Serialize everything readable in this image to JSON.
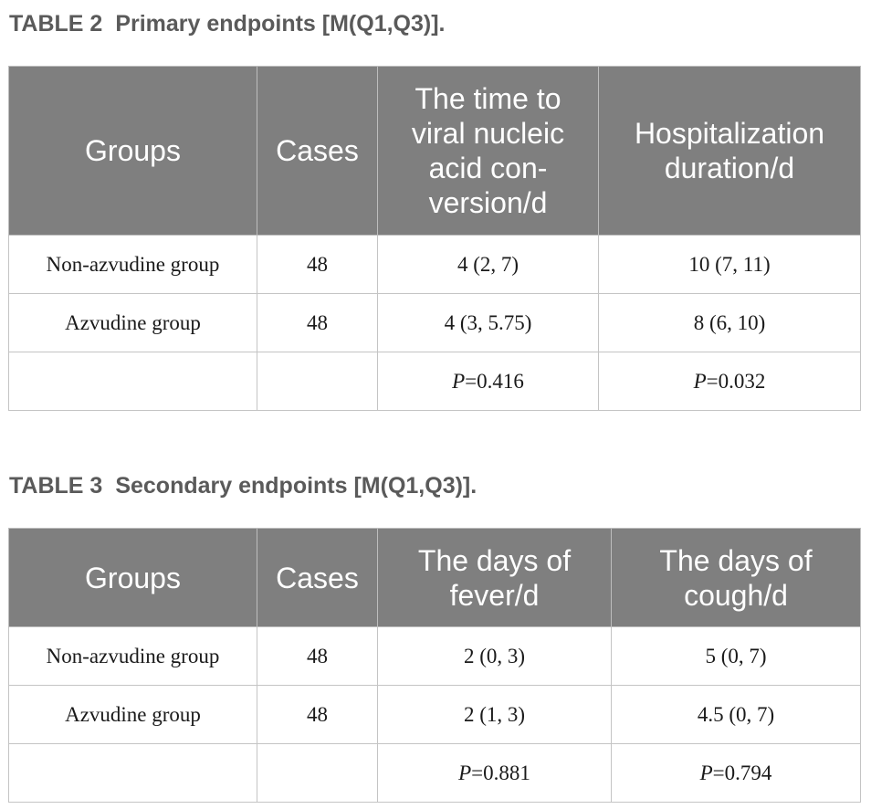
{
  "table2": {
    "caption_label": "TABLE 2",
    "caption_text": "Primary endpoints [M(Q1,Q3)].",
    "headers": [
      "Groups",
      "Cases",
      "The time to viral nucleic acid con-version/d",
      "Hospitalization duration/d"
    ],
    "header_lines": {
      "col3": [
        "The time to",
        "viral nucleic",
        "acid con-",
        "version/d"
      ],
      "col4": [
        "Hospitalization",
        "duration/d"
      ]
    },
    "rows": [
      [
        "Non-azvudine group",
        "48",
        "4 (2, 7)",
        "10 (7, 11)"
      ],
      [
        "Azvudine group",
        "48",
        "4 (3, 5.75)",
        "8 (6, 10)"
      ]
    ],
    "p_row": {
      "col3": {
        "p": "P",
        "value": "=0.416"
      },
      "col4": {
        "p": "P",
        "value": "=0.032"
      }
    }
  },
  "table3": {
    "caption_label": "TABLE 3",
    "caption_text": "Secondary endpoints [M(Q1,Q3)].",
    "headers": [
      "Groups",
      "Cases",
      "The days of fever/d",
      "The days of cough/d"
    ],
    "header_lines": {
      "col3": [
        "The days of",
        "fever/d"
      ],
      "col4": [
        "The days of",
        "cough/d"
      ]
    },
    "rows": [
      [
        "Non-azvudine group",
        "48",
        "2 (0, 3)",
        "5 (0, 7)"
      ],
      [
        "Azvudine group",
        "48",
        "2 (1, 3)",
        "4.5 (0, 7)"
      ]
    ],
    "p_row": {
      "col3": {
        "p": "P",
        "value": "=0.881"
      },
      "col4": {
        "p": "P",
        "value": "=0.794"
      }
    }
  },
  "colors": {
    "header_bg": "#7f7f7f",
    "header_text": "#ffffff",
    "caption_text": "#5a5a5a",
    "border": "#c4c4c4"
  }
}
